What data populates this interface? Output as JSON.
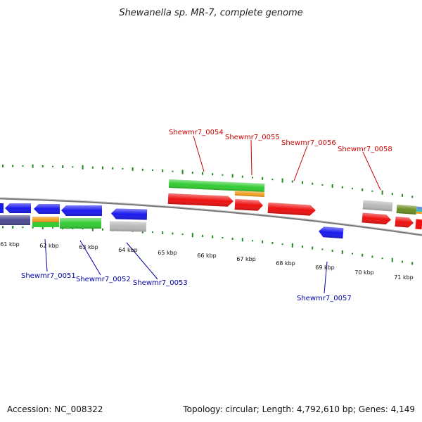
{
  "title": "Shewanella sp. MR-7, complete genome",
  "footer": {
    "accession": "Accession: NC_008322",
    "summary": "Topology: circular; Length: 4,792,610 bp; Genes: 4,149"
  },
  "colors": {
    "backbone": "#8a8a8a",
    "gc_ticks": "#1f8a1f",
    "label_forward": "#cc0000",
    "label_reverse": "#0000aa",
    "blue_gene": "#1a1aee",
    "red_gene": "#ee1111",
    "green_gene": "#33cc33",
    "orange_gene": "#f0a020",
    "grey_gene": "#b8b8b8",
    "navy_gene": "#4a4a90",
    "olive_gene": "#6b8e23"
  },
  "kbp_labels": [
    "61 kbp",
    "62 kbp",
    "63 kbp",
    "64 kbp",
    "65 kbp",
    "66 kbp",
    "67 kbp",
    "68 kbp",
    "69 kbp",
    "70 kbp",
    "71 kbp"
  ],
  "gene_labels_forward": [
    "Shewmr7_0054",
    "Shewmr7_0055",
    "Shewmr7_0056",
    "Shewmr7_0058"
  ],
  "gene_labels_reverse": [
    "Shewmr7_0051",
    "Shewmr7_0052",
    "Shewmr7_0053",
    "Shewmr7_0057"
  ]
}
